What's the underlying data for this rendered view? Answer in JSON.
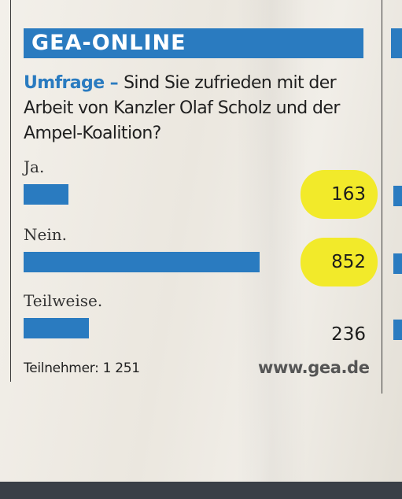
{
  "header": {
    "title": "GEA-ONLINE"
  },
  "headline": {
    "kicker": "Umfrage",
    "dash": " – ",
    "question_line1": "Sind Sie zufrieden mit der",
    "question_line2": "Arbeit von Kanzler Olaf Scholz und der",
    "question_line3": "Ampel-Koalition?"
  },
  "chart_data": {
    "type": "bar",
    "orientation": "horizontal",
    "title": "",
    "categories": [
      "Ja.",
      "Nein.",
      "Teilweise."
    ],
    "values": [
      163,
      852,
      236
    ],
    "highlighted": [
      true,
      true,
      false
    ],
    "bar_color": "#2a7bc0",
    "highlight_color": "#f2ea2a"
  },
  "footer": {
    "participants": "Teilnehmer: 1 251",
    "source": "www.gea.de"
  }
}
